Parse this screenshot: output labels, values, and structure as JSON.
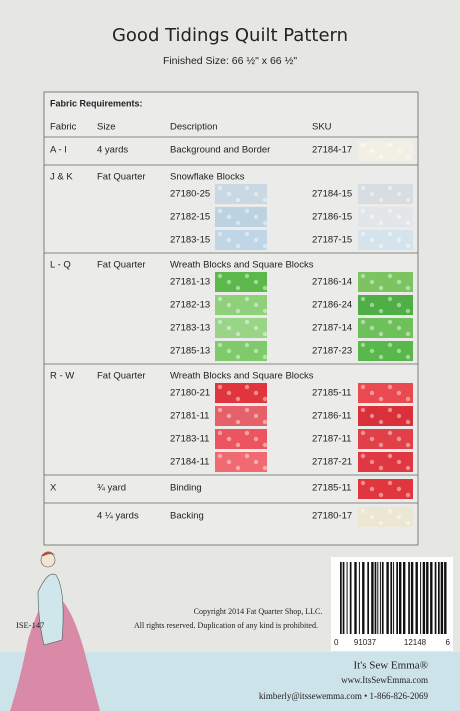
{
  "header": {
    "title": "Good Tidings Quilt Pattern",
    "subtitle": "Finished Size: 66 ½\" x 66 ½\""
  },
  "table": {
    "heading": "Fabric Requirements:",
    "columns": [
      "Fabric",
      "Size",
      "Description",
      "SKU"
    ],
    "rows": [
      {
        "fabric": "A - I",
        "size": "4 yards",
        "description": "Background and Border",
        "sku": "27184-17"
      },
      {
        "fabric": "J & K",
        "size": "Fat Quarter",
        "description": "Snowflake Blocks",
        "pairs": [
          [
            "27180-25",
            "27184-15"
          ],
          [
            "27182-15",
            "27186-15"
          ],
          [
            "27183-15",
            "27187-15"
          ]
        ]
      },
      {
        "fabric": "L - Q",
        "size": "Fat Quarter",
        "description": "Wreath Blocks and Square Blocks",
        "pairs": [
          [
            "27181-13",
            "27186-14"
          ],
          [
            "27182-13",
            "27186-24"
          ],
          [
            "27183-13",
            "27187-14"
          ],
          [
            "27185-13",
            "27187-23"
          ]
        ]
      },
      {
        "fabric": "R - W",
        "size": "Fat Quarter",
        "description": "Wreath Blocks and Square Blocks",
        "pairs": [
          [
            "27180-21",
            "27185-11"
          ],
          [
            "27181-11",
            "27186-11"
          ],
          [
            "27183-11",
            "27187-11"
          ],
          [
            "27184-11",
            "27187-21"
          ]
        ]
      },
      {
        "fabric": "X",
        "size": "¾ yard",
        "description": "Binding",
        "sku": "27185-11"
      },
      {
        "size": "4 ¼ yards",
        "description": "Backing",
        "sku": "27180-17"
      }
    ]
  },
  "footer": {
    "code": "ISE-147",
    "copyright": "Copyright 2014 Fat Quarter Shop, LLC.",
    "rights": "All rights reserved. Duplication of any kind is prohibited.",
    "barcode_digits": [
      "0",
      "91037",
      "12148",
      "6"
    ],
    "brand": "It's Sew Emma®",
    "website": "www.ItsSewEmma.com",
    "contact": "kimberly@itssewemma.com • 1-866-826-2069"
  }
}
